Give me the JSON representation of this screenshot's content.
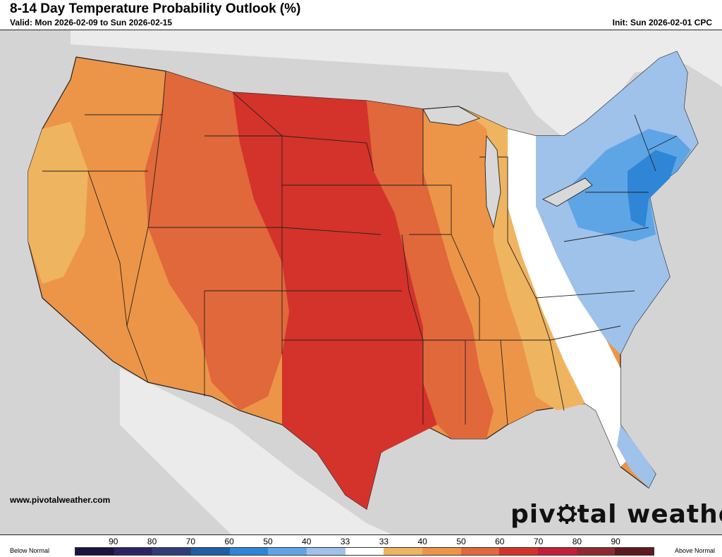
{
  "header": {
    "title": "8-14 Day Temperature Probability Outlook (%)",
    "valid": "Valid: Mon 2026-02-09 to Sun 2026-02-15",
    "init": "Init: Sun 2026-02-01 CPC"
  },
  "footer": {
    "website": "www.pivotalweather.com",
    "brand_left": "piv",
    "brand_right": "tal weather"
  },
  "legend": {
    "below_label": "Below Normal",
    "above_label": "Above Normal",
    "ticks": [
      "90",
      "80",
      "70",
      "60",
      "50",
      "40",
      "33",
      "33",
      "40",
      "50",
      "60",
      "70",
      "80",
      "90"
    ],
    "colors": [
      "#1a1440",
      "#2b2366",
      "#303d7a",
      "#1f5fa3",
      "#2f86d6",
      "#5ea5e6",
      "#9fc2ea",
      "#ffffff",
      "#efb45f",
      "#ec9548",
      "#e0683b",
      "#d3332a",
      "#c41f38",
      "#8f2a33",
      "#5e1a1e"
    ]
  },
  "map": {
    "colors": {
      "background": "#d4d4d4",
      "land": "#ebebeb",
      "water": "#d8d8d8",
      "above_33": "#efb45f",
      "above_40": "#ec9548",
      "above_50": "#e0683b",
      "above_60": "#d3332a",
      "below_33": "#9fc2ea",
      "below_40": "#5ea5e6",
      "below_50": "#2f86d6"
    }
  }
}
